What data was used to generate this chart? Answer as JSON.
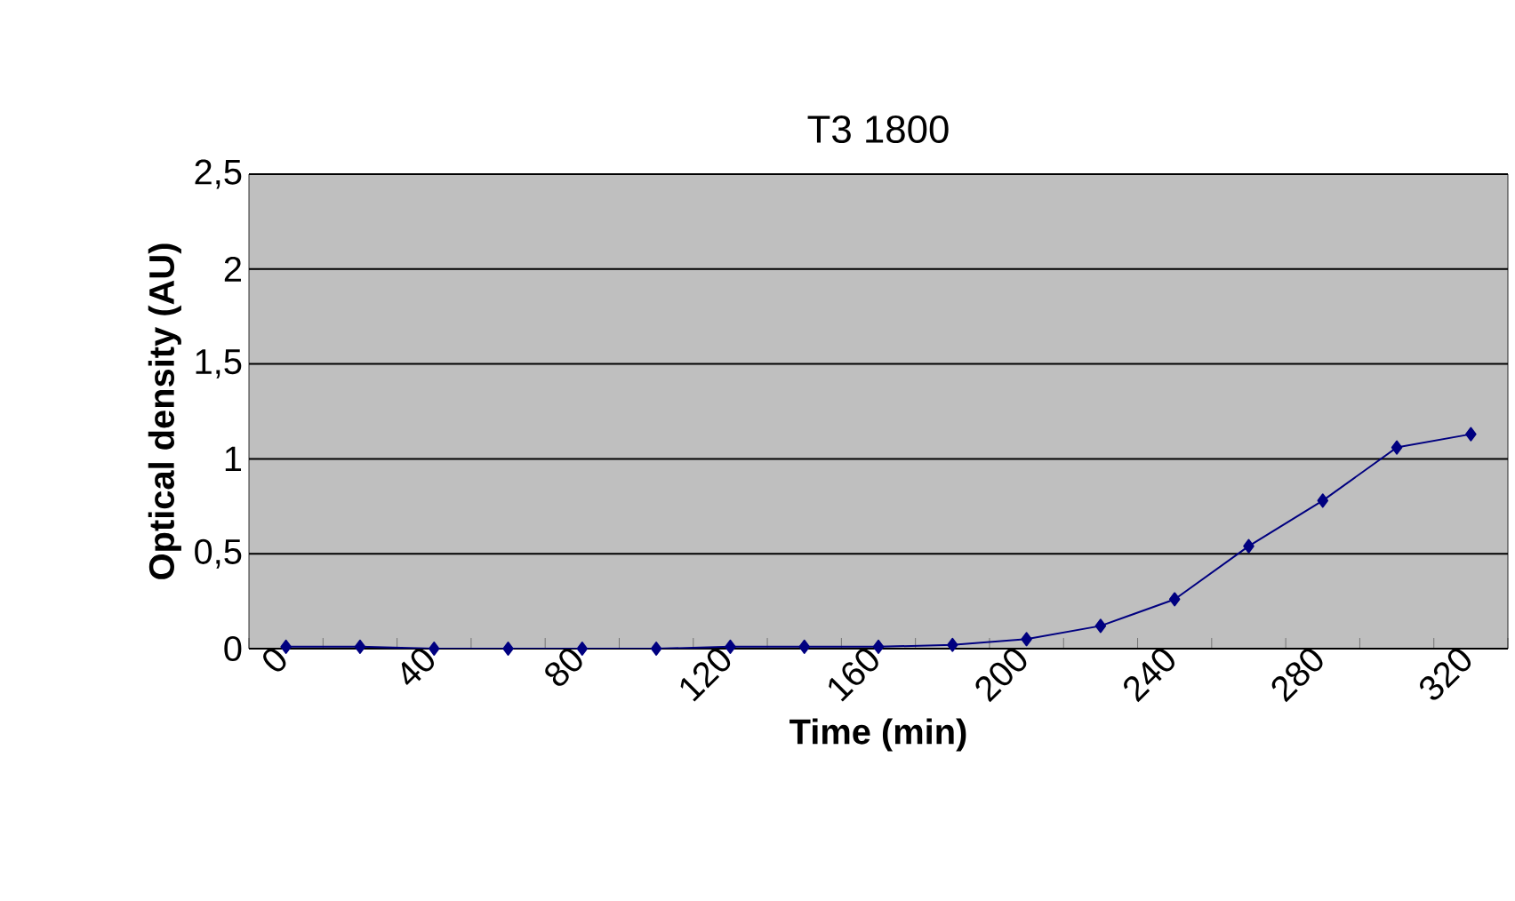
{
  "chart_data": {
    "type": "line",
    "title": "T3 1800",
    "xlabel": "Time (min)",
    "ylabel": "Optical density (AU)",
    "categories": [
      "0",
      null,
      "40",
      null,
      "80",
      null,
      "120",
      null,
      "160",
      null,
      "200",
      null,
      "240",
      null,
      "280",
      null,
      "320"
    ],
    "series": [
      {
        "color": "#000080",
        "values": [
          0.01,
          0.01,
          0,
          0,
          0,
          0,
          0.01,
          0.01,
          0.01,
          0.02,
          0.05,
          0.12,
          0.26,
          0.54,
          0.78,
          1.06,
          1.13
        ]
      }
    ],
    "ylim": [
      0,
      2.5
    ],
    "yticks": [
      0,
      {
        "value": 0.5,
        "label": "0,5"
      },
      1,
      {
        "value": 1.5,
        "label": "1,5"
      },
      2,
      {
        "value": 2.5,
        "label": "2,5"
      }
    ],
    "grid": "y",
    "marker": "diamond",
    "line_style": "solid"
  }
}
